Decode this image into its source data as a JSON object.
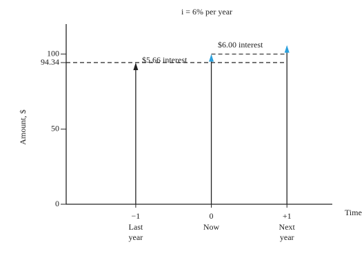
{
  "chart_data": {
    "type": "arrow",
    "title": "i = 6% per year",
    "x": [
      -1,
      0,
      1
    ],
    "x_sublabels": [
      [
        "Last",
        "year"
      ],
      [
        "Now"
      ],
      [
        "Next",
        "year"
      ]
    ],
    "values": [
      94.34,
      100,
      106
    ],
    "arrow_colors": [
      "#222222",
      "#2aa0dd",
      "#2aa0dd"
    ],
    "xlim": [
      -1.92,
      1.6
    ],
    "ylim": [
      0,
      120
    ],
    "xticks": [
      {
        "value": -1,
        "label": "−1"
      },
      0,
      {
        "value": 1,
        "label": "+1"
      }
    ],
    "yticks": [
      0,
      50,
      94.34,
      100
    ],
    "xlabel": "Time",
    "ylabel": "Amount, $",
    "reference_lines": [
      {
        "y": 94.34,
        "x": [
          -1.92,
          1
        ]
      },
      {
        "y": 100,
        "x": [
          0,
          1
        ]
      }
    ],
    "annotations": [
      "$5.66 interest",
      "$6.00 interest"
    ],
    "grid": false
  }
}
